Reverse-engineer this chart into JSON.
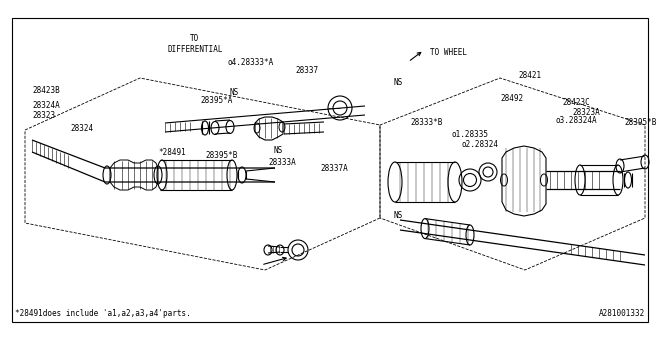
{
  "bg_color": "#ffffff",
  "line_color": "#000000",
  "footnote": "*28491does include 'a1,a2,a3,a4'parts.",
  "part_number": "A281001332",
  "font_size": 5.5,
  "diagram_font": "monospace",
  "labels": {
    "to_differential": "TO\nDIFFERENTIAL",
    "to_wheel": "TO WHEEL",
    "p28421": "28421",
    "p28492": "28492",
    "p28333B": "28333*B",
    "p28335": "o1.28335",
    "p28324r": "o2.28324",
    "p28324A_r": "o3.28324A",
    "p28395B_r": "28395*B",
    "p28323A": "28323A",
    "p28423C": "28423C",
    "p28333A_top": "o4.28333*A",
    "p28337_top": "28337",
    "p28423B": "28423B",
    "p28395A": "28395*A",
    "p28323": "28323",
    "p28324_l": "28324",
    "p28491": "*28491",
    "p28395B_l": "28395*B",
    "p28333A_bot": "28333A",
    "p28337A": "28337A",
    "ns1": "NS",
    "ns2": "NS",
    "ns3": "NS"
  }
}
